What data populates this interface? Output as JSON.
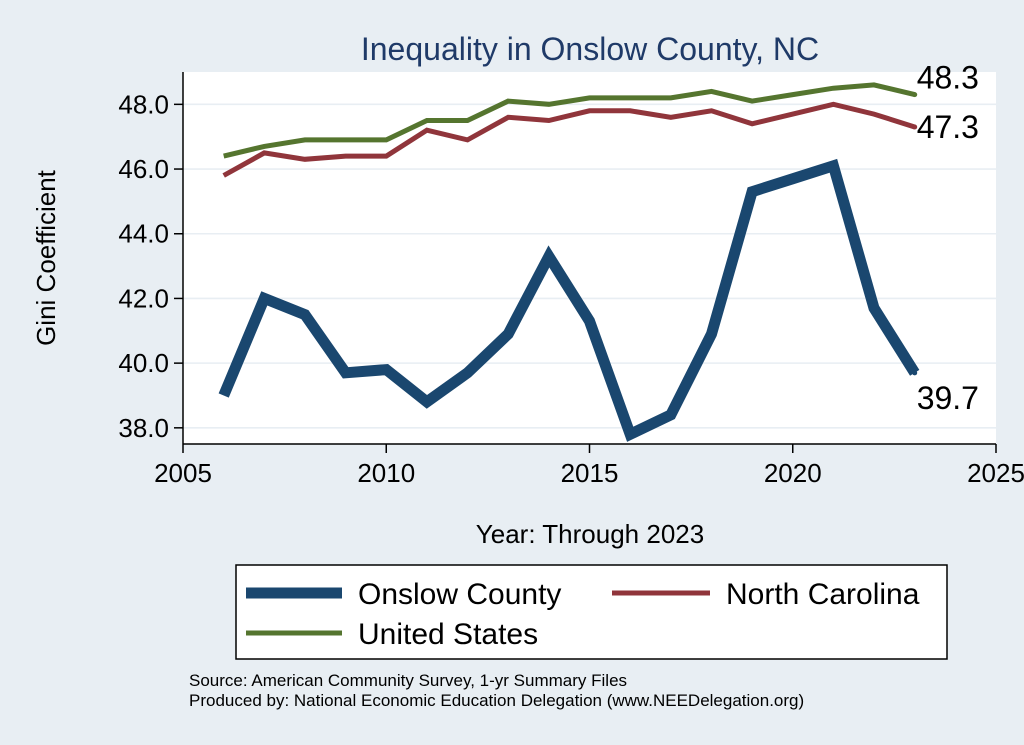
{
  "chart_data": {
    "type": "line",
    "title": "Inequality in Onslow County, NC",
    "xlabel": "Year: Through 2023",
    "ylabel": "Gini Coefficient",
    "xlim": [
      2005,
      2025
    ],
    "ylim": [
      37.5,
      49.0
    ],
    "xticks": [
      2005,
      2010,
      2015,
      2020,
      2025
    ],
    "yticks": [
      38.0,
      40.0,
      42.0,
      44.0,
      46.0,
      48.0
    ],
    "ytick_labels": [
      "38.0",
      "40.0",
      "42.0",
      "44.0",
      "46.0",
      "48.0"
    ],
    "x": [
      2006,
      2007,
      2008,
      2009,
      2010,
      2011,
      2012,
      2013,
      2014,
      2015,
      2016,
      2017,
      2018,
      2019,
      2020,
      2021,
      2022,
      2023
    ],
    "series": [
      {
        "name": "Onslow County",
        "color": "#1a476f",
        "width": 11,
        "values": [
          39.0,
          42.0,
          41.5,
          39.7,
          39.8,
          38.8,
          39.7,
          40.9,
          43.3,
          41.3,
          37.8,
          38.4,
          40.9,
          45.3,
          45.7,
          46.1,
          41.7,
          39.7
        ],
        "end_label": "39.7"
      },
      {
        "name": "North Carolina",
        "color": "#90353b",
        "width": 5,
        "values": [
          45.8,
          46.5,
          46.3,
          46.4,
          46.4,
          47.2,
          46.9,
          47.6,
          47.5,
          47.8,
          47.8,
          47.6,
          47.8,
          47.4,
          47.7,
          48.0,
          47.7,
          47.3
        ],
        "end_label": "47.3"
      },
      {
        "name": "United States",
        "color": "#55752f",
        "width": 5,
        "values": [
          46.4,
          46.7,
          46.9,
          46.9,
          46.9,
          47.5,
          47.5,
          48.1,
          48.0,
          48.2,
          48.2,
          48.2,
          48.4,
          48.1,
          48.3,
          48.5,
          48.6,
          48.3
        ],
        "end_label": "48.3"
      }
    ],
    "legend": {
      "position": "bottom",
      "entries": [
        "Onslow County",
        "North Carolina",
        "United States"
      ]
    },
    "notes": [
      "Source: American Community Survey, 1-yr Summary Files",
      "Produced by: National Economic Education Delegation (www.NEEDelegation.org)"
    ]
  }
}
